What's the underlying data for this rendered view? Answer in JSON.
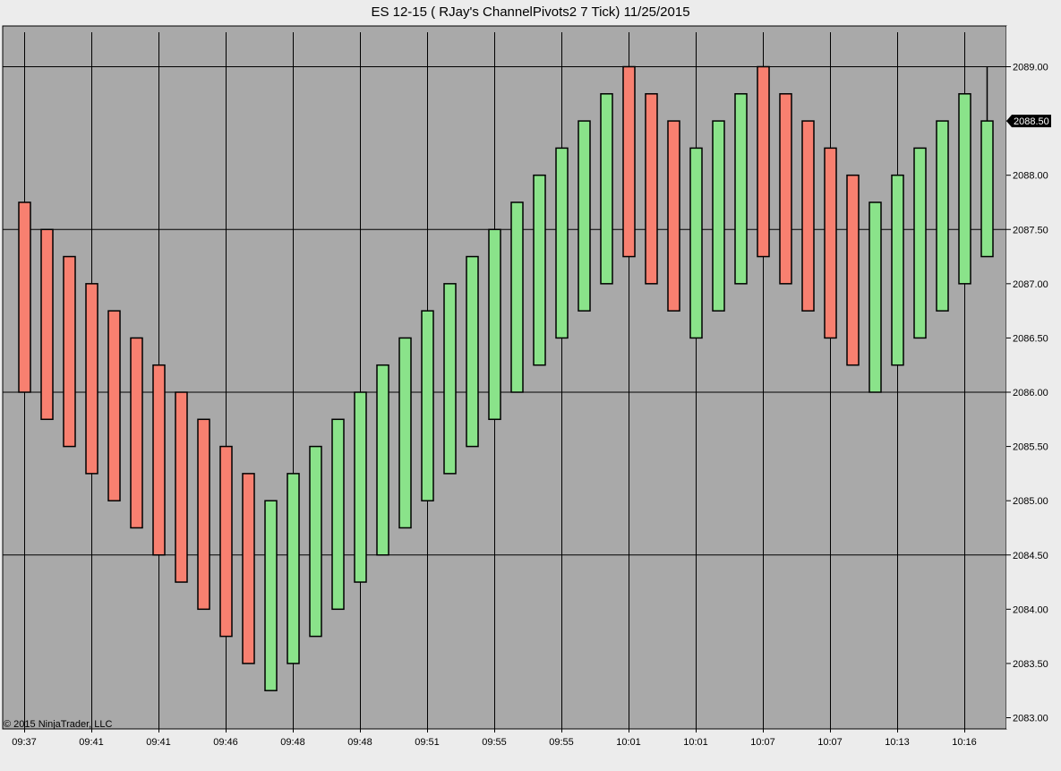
{
  "window": {
    "title": "ES 12-15 ( RJay's ChannelPivots2  7 Tick)  11/25/2015"
  },
  "copyright": "© 2015 NinjaTrader, LLC",
  "colors": {
    "plot_background": "#a9a9a9",
    "up_bar": "#8ae38a",
    "down_bar": "#f88070",
    "bar_outline": "#000000",
    "grid": "#000000",
    "price_marker": "#000000"
  },
  "chart_data": {
    "type": "bar",
    "subtype": "renko-style range bars (open/close boxes)",
    "title": "ES 12-15 ( RJay's ChannelPivots2  7 Tick)  11/25/2015",
    "ylim": [
      2083.0,
      2089.25
    ],
    "y_ticks": [
      "2083.00",
      "2083.50",
      "2084.00",
      "2084.50",
      "2085.00",
      "2085.50",
      "2086.00",
      "2086.50",
      "2087.00",
      "2087.50",
      "2088.00",
      "2088.50",
      "2089.00"
    ],
    "y_gridlines": [
      2084.5,
      2086.0,
      2087.5,
      2089.0
    ],
    "x_tick_labels": [
      "09:37",
      "09:41",
      "09:41",
      "09:46",
      "09:48",
      "09:48",
      "09:51",
      "09:55",
      "09:55",
      "10:01",
      "10:01",
      "10:07",
      "10:07",
      "10:13",
      "10:16"
    ],
    "x_tick_every_n_bars": 3,
    "last_price": "2088.50",
    "last_bar_wick_high": 2089.0,
    "bars": [
      {
        "low": 2086.0,
        "high": 2087.75,
        "dir": "down"
      },
      {
        "low": 2085.75,
        "high": 2087.5,
        "dir": "down"
      },
      {
        "low": 2085.5,
        "high": 2087.25,
        "dir": "down"
      },
      {
        "low": 2085.25,
        "high": 2087.0,
        "dir": "down"
      },
      {
        "low": 2085.0,
        "high": 2086.75,
        "dir": "down"
      },
      {
        "low": 2084.75,
        "high": 2086.5,
        "dir": "down"
      },
      {
        "low": 2084.5,
        "high": 2086.25,
        "dir": "down"
      },
      {
        "low": 2084.25,
        "high": 2086.0,
        "dir": "down"
      },
      {
        "low": 2084.0,
        "high": 2085.75,
        "dir": "down"
      },
      {
        "low": 2083.75,
        "high": 2085.5,
        "dir": "down"
      },
      {
        "low": 2083.5,
        "high": 2085.25,
        "dir": "down"
      },
      {
        "low": 2083.25,
        "high": 2085.0,
        "dir": "up"
      },
      {
        "low": 2083.5,
        "high": 2085.25,
        "dir": "up"
      },
      {
        "low": 2083.75,
        "high": 2085.5,
        "dir": "up"
      },
      {
        "low": 2084.0,
        "high": 2085.75,
        "dir": "up"
      },
      {
        "low": 2084.25,
        "high": 2086.0,
        "dir": "up"
      },
      {
        "low": 2084.5,
        "high": 2086.25,
        "dir": "up"
      },
      {
        "low": 2084.75,
        "high": 2086.5,
        "dir": "up"
      },
      {
        "low": 2085.0,
        "high": 2086.75,
        "dir": "up"
      },
      {
        "low": 2085.25,
        "high": 2087.0,
        "dir": "up"
      },
      {
        "low": 2085.5,
        "high": 2087.25,
        "dir": "up"
      },
      {
        "low": 2085.75,
        "high": 2087.5,
        "dir": "up"
      },
      {
        "low": 2086.0,
        "high": 2087.75,
        "dir": "up"
      },
      {
        "low": 2086.25,
        "high": 2088.0,
        "dir": "up"
      },
      {
        "low": 2086.5,
        "high": 2088.25,
        "dir": "up"
      },
      {
        "low": 2086.75,
        "high": 2088.5,
        "dir": "up"
      },
      {
        "low": 2087.0,
        "high": 2088.75,
        "dir": "up"
      },
      {
        "low": 2087.25,
        "high": 2089.0,
        "dir": "down"
      },
      {
        "low": 2087.0,
        "high": 2088.75,
        "dir": "down"
      },
      {
        "low": 2086.75,
        "high": 2088.5,
        "dir": "down"
      },
      {
        "low": 2086.5,
        "high": 2088.25,
        "dir": "up"
      },
      {
        "low": 2086.75,
        "high": 2088.5,
        "dir": "up"
      },
      {
        "low": 2087.0,
        "high": 2088.75,
        "dir": "up"
      },
      {
        "low": 2087.25,
        "high": 2089.0,
        "dir": "down"
      },
      {
        "low": 2087.0,
        "high": 2088.75,
        "dir": "down"
      },
      {
        "low": 2086.75,
        "high": 2088.5,
        "dir": "down"
      },
      {
        "low": 2086.5,
        "high": 2088.25,
        "dir": "down"
      },
      {
        "low": 2086.25,
        "high": 2088.0,
        "dir": "down"
      },
      {
        "low": 2086.0,
        "high": 2087.75,
        "dir": "up"
      },
      {
        "low": 2086.25,
        "high": 2088.0,
        "dir": "up"
      },
      {
        "low": 2086.5,
        "high": 2088.25,
        "dir": "up"
      },
      {
        "low": 2086.75,
        "high": 2088.5,
        "dir": "up"
      },
      {
        "low": 2087.0,
        "high": 2088.75,
        "dir": "up"
      },
      {
        "low": 2087.25,
        "high": 2088.5,
        "dir": "up"
      }
    ]
  }
}
